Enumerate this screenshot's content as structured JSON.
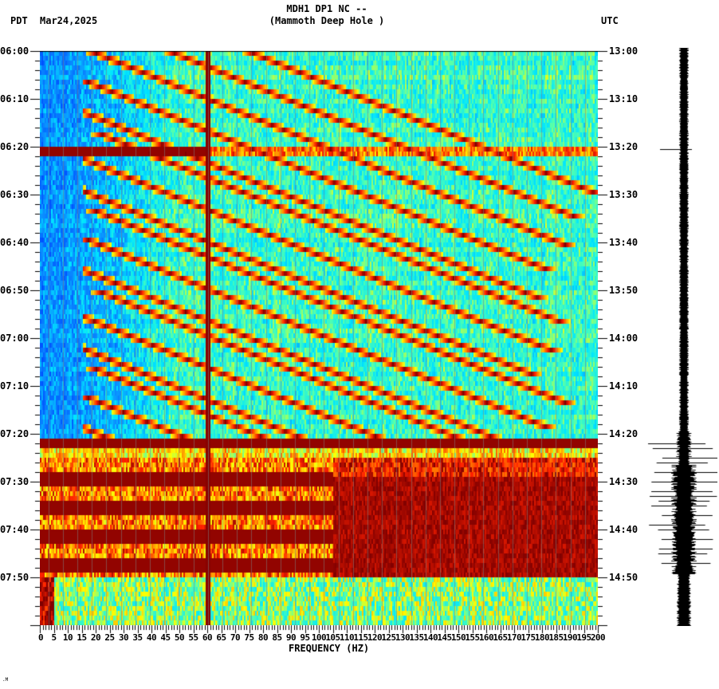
{
  "header": {
    "station_line": "MDH1 DP1 NC --",
    "location_line": "(Mammoth Deep Hole )",
    "left_timezone": "PDT",
    "date": "Mar24,2025",
    "right_timezone": "UTC"
  },
  "footer": {
    "mark": ".M"
  },
  "colors": {
    "background": "#ffffff",
    "axis": "#000000",
    "gridline": "#808080",
    "colormap": [
      "#0050ff",
      "#0a8cff",
      "#00e6ff",
      "#50ffb0",
      "#ffff00",
      "#ff9a00",
      "#ff2000",
      "#800000"
    ]
  },
  "chart_data": {
    "type": "heatmap",
    "title": "MDH1 DP1 NC -- (Mammoth Deep Hole )",
    "subtitle": "Mar24,2025",
    "xlabel": "FREQUENCY (HZ)",
    "ylabel_left": "PDT",
    "ylabel_right": "UTC",
    "xlim": [
      0,
      200
    ],
    "x_ticks": [
      "0",
      "5",
      "10",
      "15",
      "20",
      "25",
      "30",
      "35",
      "40",
      "45",
      "50",
      "55",
      "60",
      "65",
      "70",
      "75",
      "80",
      "85",
      "90",
      "95",
      "100",
      "105",
      "110",
      "115",
      "120",
      "125",
      "130",
      "135",
      "140",
      "145",
      "150",
      "155",
      "160",
      "165",
      "170",
      "175",
      "180",
      "185",
      "190",
      "195",
      "200"
    ],
    "y_ticks_left": [
      "06:00",
      "06:10",
      "06:20",
      "06:30",
      "06:40",
      "06:50",
      "07:00",
      "07:10",
      "07:20",
      "07:30",
      "07:40",
      "07:50"
    ],
    "y_ticks_right": [
      "13:00",
      "13:10",
      "13:20",
      "13:30",
      "13:40",
      "13:50",
      "14:00",
      "14:10",
      "14:20",
      "14:30",
      "14:40",
      "14:50"
    ],
    "time_range_pdt": [
      "06:00",
      "08:00"
    ],
    "time_range_utc": [
      "13:00",
      "15:00"
    ],
    "grid": true,
    "grid_interval_hz": 15,
    "features": {
      "constant_line_hz": 60,
      "horizontal_burst_minutes": [
        20.5,
        81.5
      ],
      "chirp_sweeps_interval_minutes": 5.5,
      "chirp_sweeps_end_minute": 80,
      "strong_energy_block": {
        "start_minute": 84.5,
        "end_minute": 109,
        "fmax_hz": 200
      },
      "secondary_block": {
        "start_minute": 89,
        "end_minute": 109,
        "fmin_hz": 105,
        "fmax_hz": 200
      },
      "low_freq_noise_below_hz": 30
    },
    "seismogram": {
      "description": "Waveform trace on the right side; narrow trace until ~14:20 UTC, spikes at 13:20, then large amplitude 14:20-14:50",
      "spike_minutes": [
        20.5
      ],
      "high_amplitude_range_minutes": [
        80,
        110
      ]
    }
  }
}
